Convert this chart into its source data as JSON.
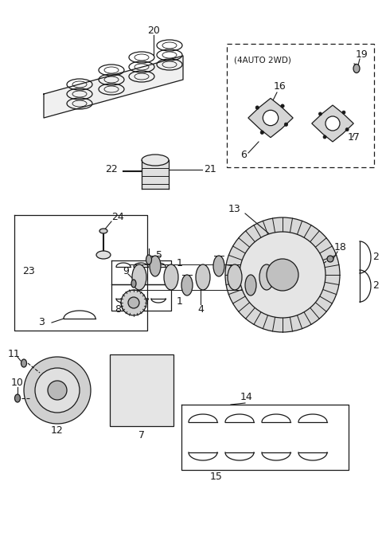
{
  "bg_color": "#ffffff",
  "line_color": "#1a1a1a",
  "fig_width": 4.8,
  "fig_height": 6.88,
  "dpi": 100
}
